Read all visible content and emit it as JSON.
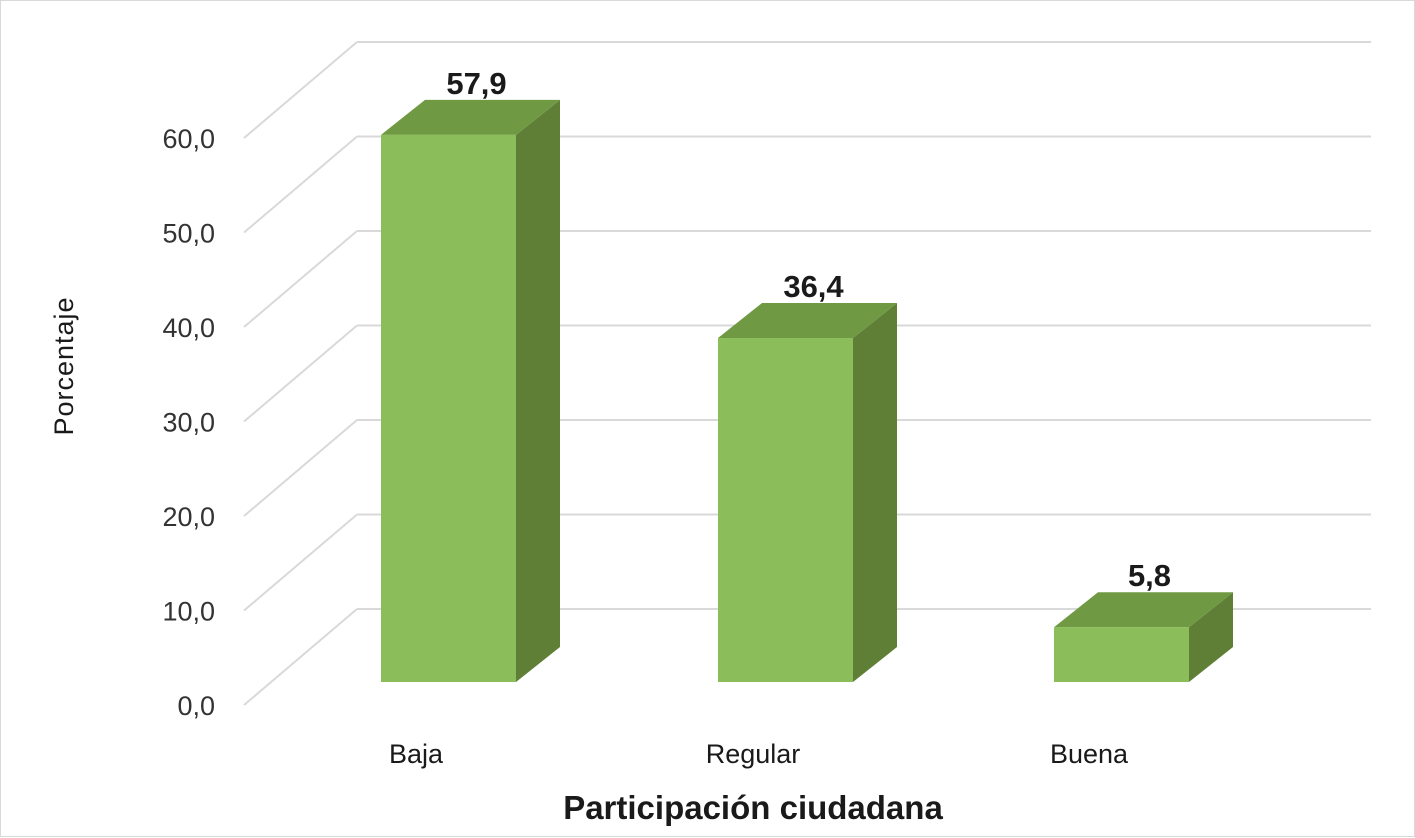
{
  "chart_data": {
    "type": "bar",
    "categories": [
      "Baja",
      "Regular",
      "Buena"
    ],
    "values": [
      57.9,
      36.4,
      5.8
    ],
    "value_labels": [
      "57,9",
      "36,4",
      "5,8"
    ],
    "xlabel": "Participación ciudadana",
    "ylabel": "Porcentaje",
    "ylim": [
      0,
      60
    ],
    "yticks": [
      0,
      10,
      20,
      30,
      40,
      50,
      60
    ],
    "ytick_labels": [
      "0,0",
      "10,0",
      "20,0",
      "30,0",
      "40,0",
      "50,0",
      "60,0"
    ],
    "grid": true,
    "legend": "none",
    "style": "3d-column",
    "colors": {
      "bar_front": "#8bbd5a",
      "bar_top": "#6f9a43",
      "bar_side": "#5f7f36",
      "grid": "#d9d9d9"
    }
  }
}
